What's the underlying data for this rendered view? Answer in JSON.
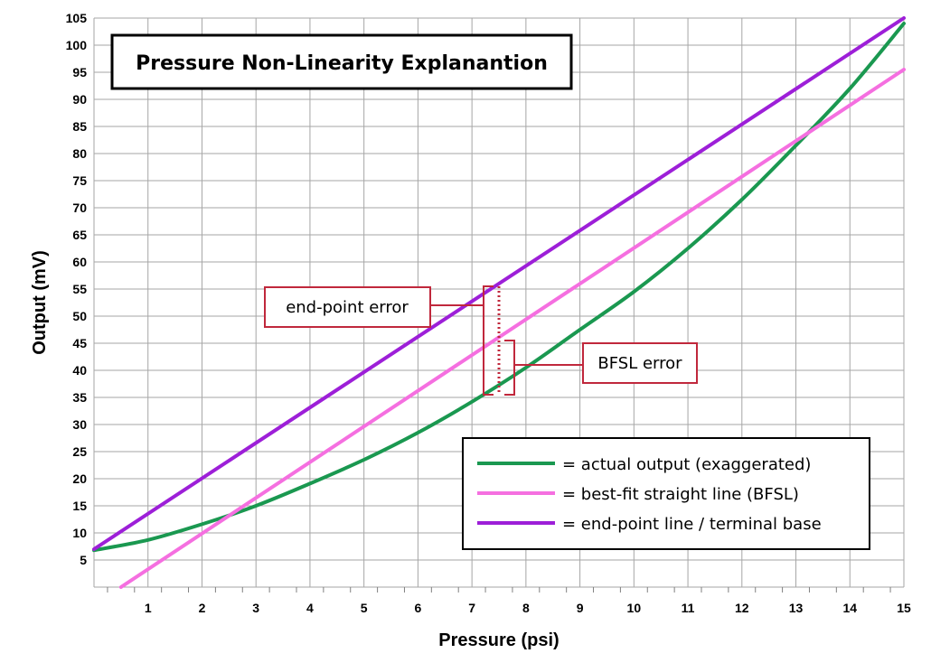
{
  "chart_data": {
    "type": "line",
    "title": "Pressure Non-Linearity Explanantion",
    "xlabel": "Pressure (psi)",
    "ylabel": "Output (mV)",
    "xlim": [
      0,
      15
    ],
    "ylim": [
      0,
      105
    ],
    "x_ticks": [
      1,
      2,
      3,
      4,
      5,
      6,
      7,
      8,
      9,
      10,
      11,
      12,
      13,
      14,
      15
    ],
    "y_ticks": [
      5,
      10,
      15,
      20,
      25,
      30,
      35,
      40,
      45,
      50,
      55,
      60,
      65,
      70,
      75,
      80,
      85,
      90,
      95,
      100,
      105
    ],
    "grid": true,
    "series": [
      {
        "name": "actual output (exaggerated)",
        "legend_label": "= actual output (exaggerated)",
        "color": "#1a9850",
        "x": [
          0,
          1,
          2,
          3,
          4,
          5,
          6,
          7,
          8,
          9,
          10,
          11,
          12,
          13,
          14,
          15
        ],
        "y": [
          6.8,
          8.7,
          11.6,
          15.0,
          19.1,
          23.5,
          28.5,
          34.2,
          40.5,
          47.5,
          54.5,
          62.5,
          71.5,
          81.5,
          92.0,
          104.0
        ]
      },
      {
        "name": "best-fit straight line (BFSL)",
        "legend_label": "= best-fit straight line (BFSL)",
        "color": "#f56fe0",
        "x": [
          0.5,
          15
        ],
        "y": [
          0,
          95.5
        ]
      },
      {
        "name": "end-point line / terminal base",
        "legend_label": "= end-point line / terminal base",
        "color": "#9d1fd8",
        "x": [
          0,
          15
        ],
        "y": [
          7,
          105
        ]
      }
    ],
    "annotations": [
      {
        "text": "end-point error",
        "x": 7.5,
        "y_from": 35.5,
        "y_to": 55.5,
        "color": "#c0283c"
      },
      {
        "text": "BFSL error",
        "x": 7.5,
        "y_from": 35.5,
        "y_to": 45.5,
        "color": "#c0283c"
      }
    ],
    "legend_position": "bottom-right"
  }
}
